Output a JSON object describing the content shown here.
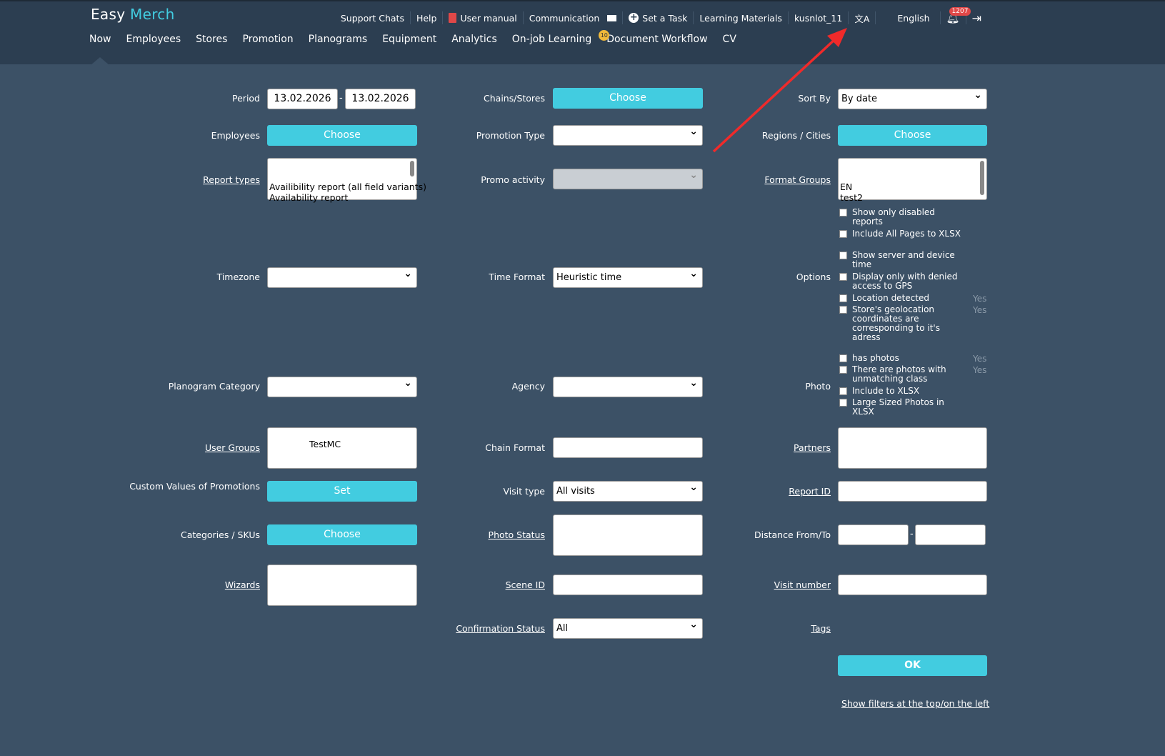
{
  "header": {
    "logo_a": "Easy",
    "logo_b": "Merch",
    "top": [
      "Support Chats",
      "Help",
      "User manual",
      "Communication",
      "Set a Task",
      "Learning Materials",
      "kusnlot_11",
      "English"
    ],
    "notif_count": "1207",
    "nav": [
      "Now",
      "Employees",
      "Stores",
      "Promotion",
      "Planograms",
      "Equipment",
      "Analytics",
      "On-job Learning",
      "Document Workflow",
      "CV"
    ],
    "doc_badge": "10"
  },
  "form": {
    "period_label": "Period",
    "date_from": "13.02.2026",
    "date_sep": "-",
    "date_to": "13.02.2026",
    "employees_label": "Employees",
    "choose": "Choose",
    "report_types_label": "Report types",
    "report_types": [
      "Availibility report (all field variants)",
      "Availability report"
    ],
    "timezone_label": "Timezone",
    "planogram_category_label": "Planogram Category",
    "user_groups_label": "User Groups",
    "user_groups_value": "TestMC",
    "custom_values_label": "Custom Values of Promotions",
    "set": "Set",
    "categories_label": "Categories / SKUs",
    "wizards_label": "Wizards",
    "chains_label": "Chains/Stores",
    "promotion_type_label": "Promotion Type",
    "promo_activity_label": "Promo activity",
    "time_format_label": "Time Format",
    "time_format_value": "Heuristic time",
    "agency_label": "Agency",
    "chain_format_label": "Chain Format",
    "visit_type_label": "Visit type",
    "visit_type_value": "All visits",
    "photo_status_label": "Photo Status",
    "scene_id_label": "Scene ID",
    "confirmation_label": "Confirmation Status",
    "confirmation_value": "All",
    "sort_by_label": "Sort By",
    "sort_by_value": "By date",
    "regions_label": "Regions / Cities",
    "format_groups_label": "Format Groups",
    "format_groups": [
      "EN",
      "test2"
    ],
    "options_label": "Options",
    "options": [
      {
        "text": "Show only disabled reports"
      },
      {
        "text": "Include All Pages to XLSX"
      },
      {
        "text": "Show server and device time"
      },
      {
        "text": "Display only with denied access to GPS"
      },
      {
        "text": "Location detected",
        "yes": "Yes"
      },
      {
        "text": "Store's geolocation coordinates are corresponding to it's adress",
        "yes": "Yes"
      }
    ],
    "photo_label": "Photo",
    "photo_options": [
      {
        "text": "has photos",
        "yes": "Yes"
      },
      {
        "text": "There are photos with unmatching class",
        "yes": "Yes"
      },
      {
        "text": "Include to XLSX"
      },
      {
        "text": "Large Sized Photos in XLSX"
      }
    ],
    "partners_label": "Partners",
    "report_id_label": "Report ID",
    "distance_label": "Distance From/To",
    "distance_sep": "-",
    "visit_number_label": "Visit number",
    "tags_label": "Tags",
    "ok": "OK",
    "show_filters": "Show filters at the top/on the left"
  },
  "colors": {
    "accent": "#42cce0",
    "header": "#2c3e51",
    "body": "#3c5166",
    "annotation_arrow": "#f02a2a"
  }
}
